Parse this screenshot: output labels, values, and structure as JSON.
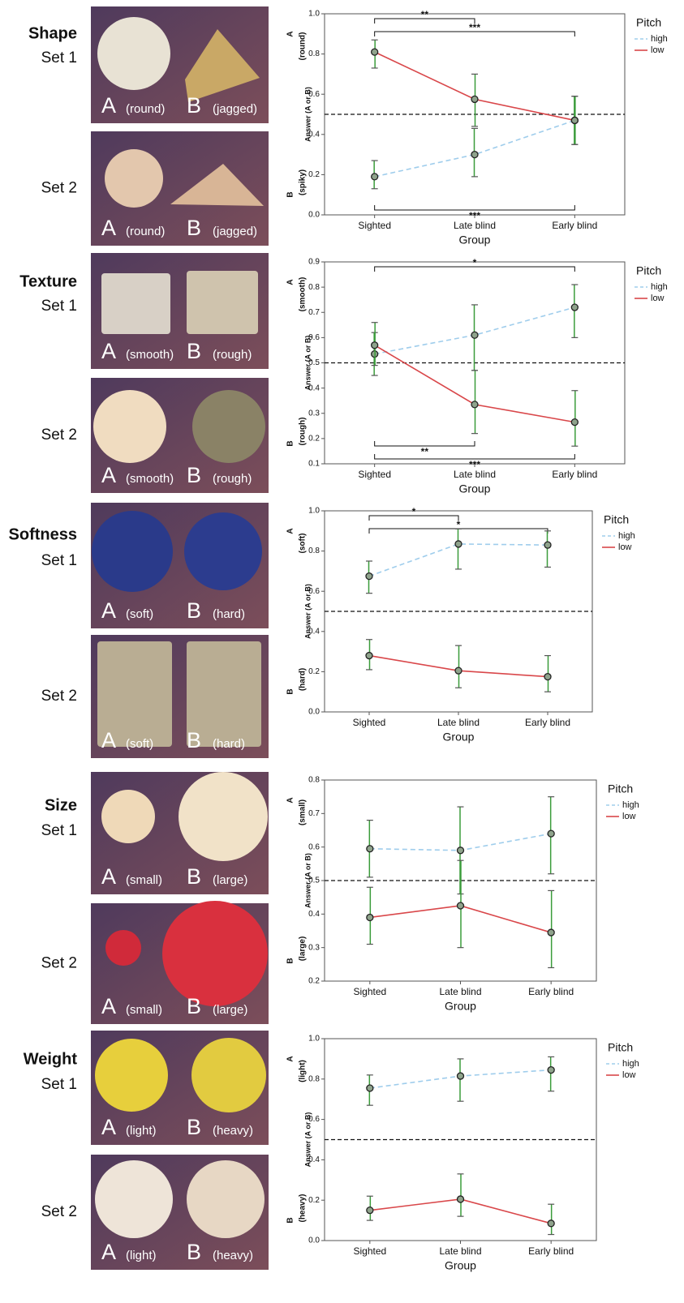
{
  "panels": [
    {
      "title": "Shape",
      "sets": [
        {
          "label": "Set 1",
          "a": "A",
          "a_note": "(round)",
          "b": "B",
          "b_note": "(jagged)"
        },
        {
          "label": "Set 2",
          "a": "A",
          "a_note": "(round)",
          "b": "B",
          "b_note": "(jagged)"
        }
      ]
    },
    {
      "title": "Texture",
      "sets": [
        {
          "label": "Set 1",
          "a": "A",
          "a_note": "(smooth)",
          "b": "B",
          "b_note": "(rough)"
        },
        {
          "label": "Set 2",
          "a": "A",
          "a_note": "(smooth)",
          "b": "B",
          "b_note": "(rough)"
        }
      ]
    },
    {
      "title": "Softness",
      "sets": [
        {
          "label": "Set 1",
          "a": "A",
          "a_note": "(soft)",
          "b": "B",
          "b_note": "(hard)"
        },
        {
          "label": "Set 2",
          "a": "A",
          "a_note": "(soft)",
          "b": "B",
          "b_note": "(hard)"
        }
      ]
    },
    {
      "title": "Size",
      "sets": [
        {
          "label": "Set 1",
          "a": "A",
          "a_note": "(small)",
          "b": "B",
          "b_note": "(large)"
        },
        {
          "label": "Set 2",
          "a": "A",
          "a_note": "(small)",
          "b": "B",
          "b_note": "(large)"
        }
      ]
    },
    {
      "title": "Weight",
      "sets": [
        {
          "label": "Set 1",
          "a": "A",
          "a_note": "(light)",
          "b": "B",
          "b_note": "(heavy)"
        },
        {
          "label": "Set 2",
          "a": "A",
          "a_note": "(light)",
          "b": "B",
          "b_note": "(heavy)"
        }
      ]
    }
  ],
  "chart_data": [
    {
      "type": "line",
      "y_label": "Answer (A or B)",
      "x_label": "Group",
      "top_label": "A",
      "top_note": "(round)",
      "bottom_label": "B",
      "bottom_note": "(spiky)",
      "categories": [
        "Sighted",
        "Late blind",
        "Early blind"
      ],
      "ylim": [
        0,
        1
      ],
      "yticks": [
        {
          "value": 0,
          "label": "0.0"
        },
        0.2,
        0.4,
        0.6,
        0.8,
        {
          "value": 1,
          "label": "1.0"
        }
      ],
      "reference_line": 0.5,
      "legend_title": "Pitch",
      "series": [
        {
          "name": "high",
          "color": "#9fcdec",
          "dash": true,
          "values": [
            0.19,
            0.3,
            0.47
          ],
          "ci_low": [
            0.13,
            0.19,
            0.35
          ],
          "ci_high": [
            0.27,
            0.43,
            0.59
          ]
        },
        {
          "name": "low",
          "color": "#d9474a",
          "dash": false,
          "values": [
            0.81,
            0.575,
            0.47
          ],
          "ci_low": [
            0.73,
            0.44,
            0.35
          ],
          "ci_high": [
            0.87,
            0.7,
            0.59
          ]
        }
      ],
      "brackets": [
        {
          "from": "Sighted",
          "to": "Late blind",
          "label": "**",
          "side": "top"
        },
        {
          "from": "Sighted",
          "to": "Early blind",
          "label": "***",
          "side": "top"
        },
        {
          "from": "Sighted",
          "to": "Early blind",
          "label": "***",
          "side": "bottom"
        }
      ]
    },
    {
      "type": "line",
      "y_label": "Answer (A or B)",
      "x_label": "Group",
      "top_label": "A",
      "top_note": "(smooth)",
      "bottom_label": "B",
      "bottom_note": "(rough)",
      "categories": [
        "Sighted",
        "Late blind",
        "Early blind"
      ],
      "ylim": [
        0.1,
        0.9
      ],
      "yticks": [
        0.1,
        0.2,
        0.3,
        0.4,
        0.5,
        0.6,
        0.7,
        0.8,
        0.9
      ],
      "reference_line": 0.5,
      "legend_title": "Pitch",
      "series": [
        {
          "name": "high",
          "color": "#9fcdec",
          "dash": true,
          "values": [
            0.535,
            0.61,
            0.72
          ],
          "ci_low": [
            0.45,
            0.47,
            0.6
          ],
          "ci_high": [
            0.62,
            0.73,
            0.81
          ]
        },
        {
          "name": "low",
          "color": "#d9474a",
          "dash": false,
          "values": [
            0.57,
            0.335,
            0.265
          ],
          "ci_low": [
            0.49,
            0.22,
            0.17
          ],
          "ci_high": [
            0.66,
            0.47,
            0.39
          ]
        }
      ],
      "brackets": [
        {
          "from": "Sighted",
          "to": "Early blind",
          "label": "*",
          "side": "top"
        },
        {
          "from": "Sighted",
          "to": "Late blind",
          "label": "**",
          "side": "bottom"
        },
        {
          "from": "Sighted",
          "to": "Early blind",
          "label": "***",
          "side": "bottom"
        }
      ]
    },
    {
      "type": "line",
      "y_label": "Answer (A or B)",
      "x_label": "Group",
      "top_label": "A",
      "top_note": "(soft)",
      "bottom_label": "B",
      "bottom_note": "(hard)",
      "categories": [
        "Sighted",
        "Late blind",
        "Early blind"
      ],
      "ylim": [
        0,
        1
      ],
      "yticks": [
        {
          "value": 0,
          "label": "0.0"
        },
        0.2,
        0.4,
        0.6,
        0.8,
        {
          "value": 1,
          "label": "1.0"
        }
      ],
      "reference_line": 0.5,
      "legend_title": "Pitch",
      "series": [
        {
          "name": "high",
          "color": "#9fcdec",
          "dash": true,
          "values": [
            0.675,
            0.835,
            0.83
          ],
          "ci_low": [
            0.59,
            0.71,
            0.72
          ],
          "ci_high": [
            0.75,
            0.91,
            0.9
          ]
        },
        {
          "name": "low",
          "color": "#d9474a",
          "dash": false,
          "values": [
            0.28,
            0.205,
            0.175
          ],
          "ci_low": [
            0.21,
            0.12,
            0.1
          ],
          "ci_high": [
            0.36,
            0.33,
            0.28
          ]
        }
      ],
      "brackets": [
        {
          "from": "Sighted",
          "to": "Late blind",
          "label": "*",
          "side": "top"
        },
        {
          "from": "Sighted",
          "to": "Early blind",
          "label": "*",
          "side": "top"
        }
      ]
    },
    {
      "type": "line",
      "y_label": "Answer (A or B)",
      "x_label": "Group",
      "top_label": "A",
      "top_note": "(small)",
      "bottom_label": "B",
      "bottom_note": "(large)",
      "categories": [
        "Sighted",
        "Late blind",
        "Early blind"
      ],
      "ylim": [
        0.2,
        0.8
      ],
      "yticks": [
        0.2,
        0.3,
        0.4,
        0.5,
        0.6,
        0.7,
        0.8
      ],
      "reference_line": 0.5,
      "legend_title": "Pitch",
      "series": [
        {
          "name": "high",
          "color": "#9fcdec",
          "dash": true,
          "values": [
            0.595,
            0.59,
            0.64
          ],
          "ci_low": [
            0.51,
            0.46,
            0.52
          ],
          "ci_high": [
            0.68,
            0.72,
            0.75
          ]
        },
        {
          "name": "low",
          "color": "#d9474a",
          "dash": false,
          "values": [
            0.39,
            0.425,
            0.345
          ],
          "ci_low": [
            0.31,
            0.3,
            0.24
          ],
          "ci_high": [
            0.48,
            0.56,
            0.47
          ]
        }
      ],
      "brackets": []
    },
    {
      "type": "line",
      "y_label": "Answer (A or B)",
      "x_label": "Group",
      "top_label": "A",
      "top_note": "(light)",
      "bottom_label": "B",
      "bottom_note": "(heavy)",
      "categories": [
        "Sighted",
        "Late blind",
        "Early blind"
      ],
      "ylim": [
        0,
        1
      ],
      "yticks": [
        {
          "value": 0,
          "label": "0.0"
        },
        0.2,
        0.4,
        0.6,
        0.8,
        {
          "value": 1,
          "label": "1.0"
        }
      ],
      "reference_line": 0.5,
      "legend_title": "Pitch",
      "series": [
        {
          "name": "high",
          "color": "#9fcdec",
          "dash": true,
          "values": [
            0.755,
            0.815,
            0.845
          ],
          "ci_low": [
            0.67,
            0.69,
            0.74
          ],
          "ci_high": [
            0.82,
            0.9,
            0.91
          ]
        },
        {
          "name": "low",
          "color": "#d9474a",
          "dash": false,
          "values": [
            0.15,
            0.205,
            0.085
          ],
          "ci_low": [
            0.1,
            0.12,
            0.03
          ],
          "ci_high": [
            0.22,
            0.33,
            0.18
          ]
        }
      ],
      "brackets": []
    }
  ]
}
